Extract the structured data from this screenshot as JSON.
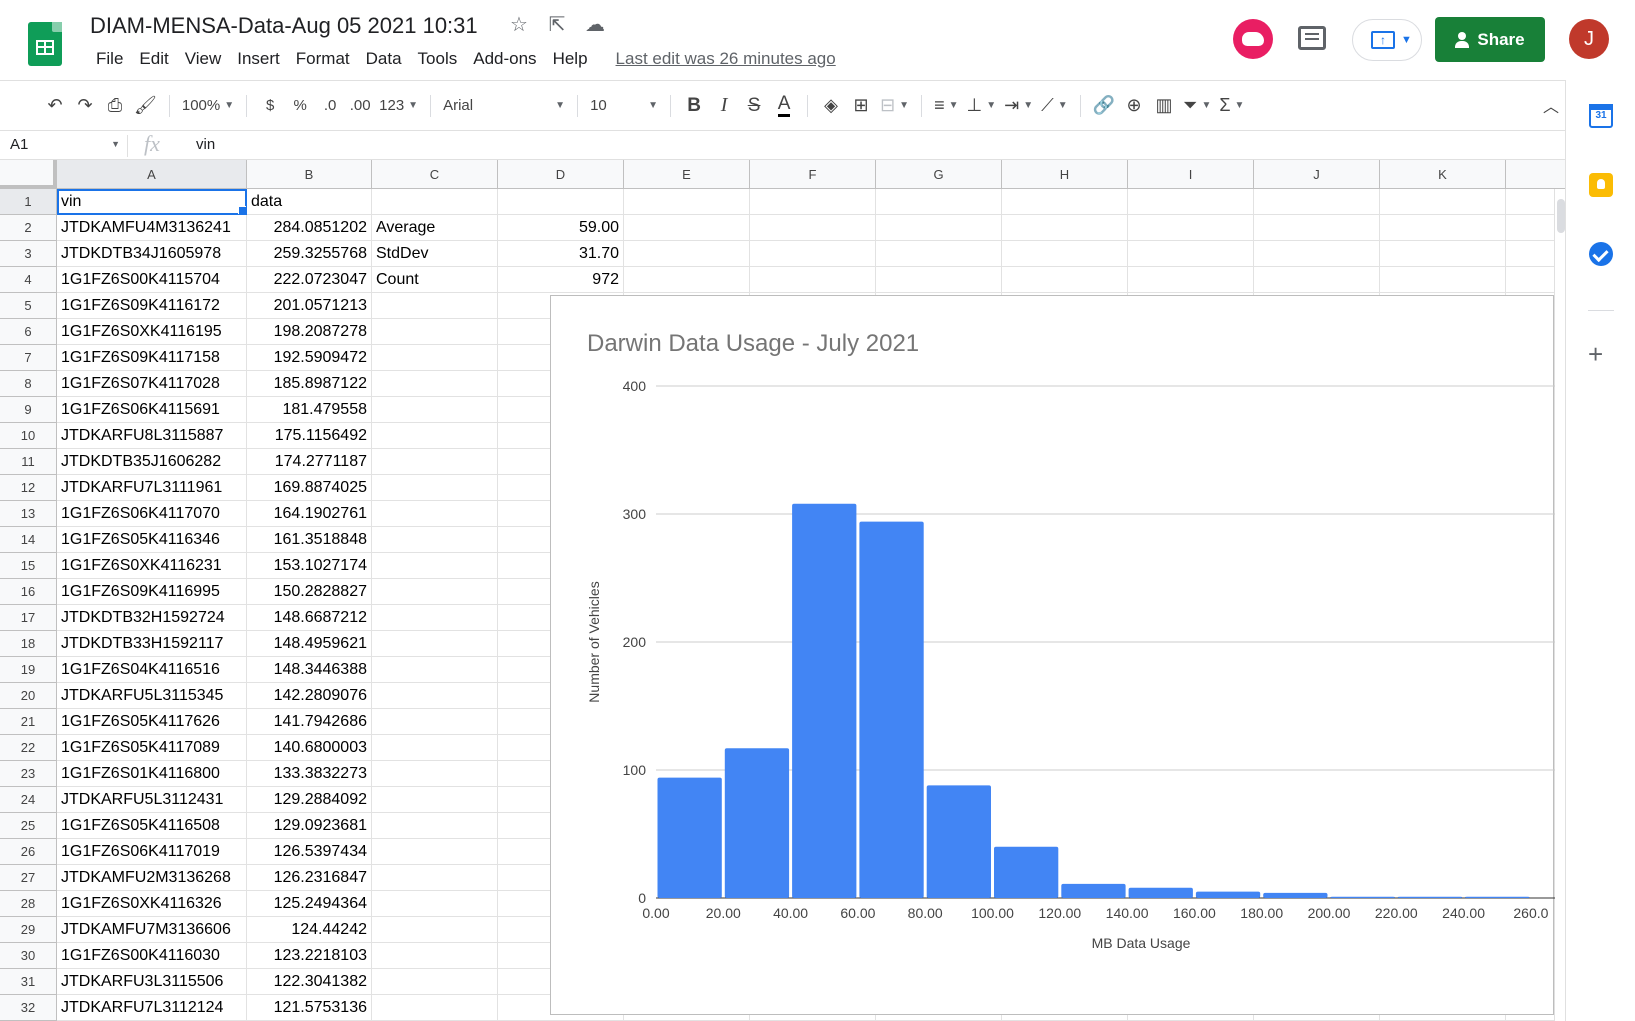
{
  "document": {
    "title": "DIAM-MENSA-Data-Aug 05 2021 10:31",
    "last_edit": "Last edit was 26 minutes ago"
  },
  "menu": [
    "File",
    "Edit",
    "View",
    "Insert",
    "Format",
    "Data",
    "Tools",
    "Add-ons",
    "Help"
  ],
  "header": {
    "share_label": "Share",
    "user_initial": "J"
  },
  "toolbar": {
    "zoom": "100%",
    "currency": "$",
    "percent": "%",
    "decrease_decimal": ".0",
    "increase_decimal": ".00",
    "more_formats": "123",
    "font": "Arial",
    "font_size": "10",
    "bold": "B",
    "italic": "I",
    "strike": "S",
    "text_color": "A",
    "sum": "Σ"
  },
  "formula_bar": {
    "cell_ref": "A1",
    "fx": "fx",
    "value": "vin"
  },
  "sheet": {
    "columns": [
      "A",
      "B",
      "C",
      "D",
      "E",
      "F",
      "G",
      "H",
      "I",
      "J",
      "K"
    ],
    "rows": [
      [
        "vin",
        "data",
        "",
        ""
      ],
      [
        "JTDKAMFU4M3136241",
        "284.0851202",
        "Average",
        "59.00"
      ],
      [
        "JTDKDTB34J1605978",
        "259.3255768",
        "StdDev",
        "31.70"
      ],
      [
        "1G1FZ6S00K4115704",
        "222.0723047",
        "Count",
        "972"
      ],
      [
        "1G1FZ6S09K4116172",
        "201.0571213",
        "",
        ""
      ],
      [
        "1G1FZ6S0XK4116195",
        "198.2087278",
        "",
        ""
      ],
      [
        "1G1FZ6S09K4117158",
        "192.5909472",
        "",
        ""
      ],
      [
        "1G1FZ6S07K4117028",
        "185.8987122",
        "",
        ""
      ],
      [
        "1G1FZ6S06K4115691",
        "181.479558",
        "",
        ""
      ],
      [
        "JTDKARFU8L3115887",
        "175.1156492",
        "",
        ""
      ],
      [
        "JTDKDTB35J1606282",
        "174.2771187",
        "",
        ""
      ],
      [
        "JTDKARFU7L3111961",
        "169.8874025",
        "",
        ""
      ],
      [
        "1G1FZ6S06K4117070",
        "164.1902761",
        "",
        ""
      ],
      [
        "1G1FZ6S05K4116346",
        "161.3518848",
        "",
        ""
      ],
      [
        "1G1FZ6S0XK4116231",
        "153.1027174",
        "",
        ""
      ],
      [
        "1G1FZ6S09K4116995",
        "150.2828827",
        "",
        ""
      ],
      [
        "JTDKDTB32H1592724",
        "148.6687212",
        "",
        ""
      ],
      [
        "JTDKDTB33H1592117",
        "148.4959621",
        "",
        ""
      ],
      [
        "1G1FZ6S04K4116516",
        "148.3446388",
        "",
        ""
      ],
      [
        "JTDKARFU5L3115345",
        "142.2809076",
        "",
        ""
      ],
      [
        "1G1FZ6S05K4117626",
        "141.7942686",
        "",
        ""
      ],
      [
        "1G1FZ6S05K4117089",
        "140.6800003",
        "",
        ""
      ],
      [
        "1G1FZ6S01K4116800",
        "133.3832273",
        "",
        ""
      ],
      [
        "JTDKARFU5L3112431",
        "129.2884092",
        "",
        ""
      ],
      [
        "1G1FZ6S05K4116508",
        "129.0923681",
        "",
        ""
      ],
      [
        "1G1FZ6S06K4117019",
        "126.5397434",
        "",
        ""
      ],
      [
        "JTDKAMFU2M3136268",
        "126.2316847",
        "",
        ""
      ],
      [
        "1G1FZ6S0XK4116326",
        "125.2494364",
        "",
        ""
      ],
      [
        "JTDKAMFU7M3136606",
        "124.44242",
        "",
        ""
      ],
      [
        "1G1FZ6S00K4116030",
        "123.2218103",
        "",
        ""
      ],
      [
        "JTDKARFU3L3115506",
        "122.3041382",
        "",
        ""
      ],
      [
        "JTDKARFU7L3112124",
        "121.5753136",
        "",
        ""
      ]
    ]
  },
  "colors": {
    "bar": "#4285f4",
    "share_button": "#188038",
    "selection": "#1a73e8",
    "gridline": "#e0e0e0"
  },
  "chart_data": {
    "type": "bar",
    "title": "Darwin Data Usage - July 2021",
    "xlabel": "MB Data Usage",
    "ylabel": "Number of Vehicles",
    "bin_edges": [
      0,
      20,
      40,
      60,
      80,
      100,
      120,
      140,
      160,
      180,
      200,
      220,
      240,
      260
    ],
    "x_tick_labels": [
      "0.00",
      "20.00",
      "40.00",
      "60.00",
      "80.00",
      "100.00",
      "120.00",
      "140.00",
      "160.00",
      "180.00",
      "200.00",
      "220.00",
      "240.00",
      "260.0"
    ],
    "values": [
      94,
      117,
      308,
      294,
      88,
      40,
      11,
      8,
      5,
      4,
      1,
      1,
      1
    ],
    "y_ticks": [
      "0",
      "100",
      "200",
      "300",
      "400"
    ],
    "ylim": [
      0,
      400
    ],
    "grid": true,
    "legend": "none"
  }
}
